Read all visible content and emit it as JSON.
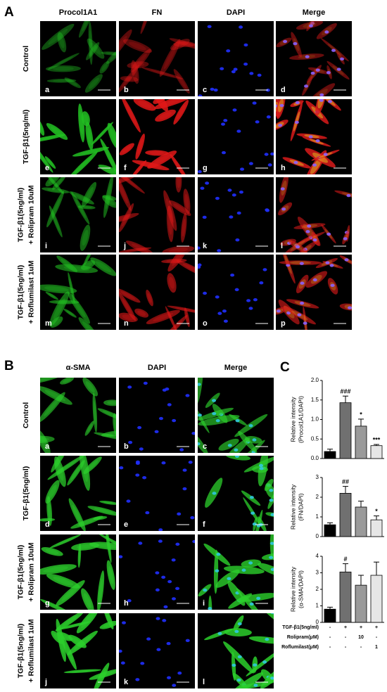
{
  "panel_a": {
    "letter": "A",
    "columns": [
      "Procol1A1",
      "FN",
      "DAPI",
      "Merge"
    ],
    "rows": [
      [
        "Control"
      ],
      [
        "TGF-β1(5ng/ml)"
      ],
      [
        "TGF-β1(5ng/ml)",
        "+ Rolipram 10uM"
      ],
      [
        "TGF-β1(5ng/ml)",
        "+ Roflumilast 1uM"
      ]
    ],
    "image_labels": [
      [
        "a",
        "b",
        "c",
        "d"
      ],
      [
        "e",
        "f",
        "g",
        "h"
      ],
      [
        "i",
        "j",
        "k",
        "l"
      ],
      [
        "m",
        "n",
        "o",
        "p"
      ]
    ]
  },
  "panel_b": {
    "letter": "B",
    "columns": [
      "α-SMA",
      "DAPI",
      "Merge"
    ],
    "rows": [
      [
        "Control"
      ],
      [
        "TGF-β1(5ng/ml)"
      ],
      [
        "TGF-β1(5ng/ml)",
        "+ Rolipram 10uM"
      ],
      [
        "TGF-β1(5ng/ml)",
        "+ Roflumilast 1uM"
      ]
    ],
    "image_labels": [
      [
        "a",
        "b",
        "c"
      ],
      [
        "d",
        "e",
        "f"
      ],
      [
        "g",
        "h",
        "i"
      ],
      [
        "j",
        "k",
        "l"
      ]
    ]
  },
  "panel_c": {
    "letter": "C",
    "treatment_table": [
      {
        "label": "TGF-β1(5ng/ml)",
        "values": [
          "-",
          "+",
          "+",
          "+"
        ]
      },
      {
        "label": "Rolipram(μM)",
        "values": [
          "-",
          "-",
          "10",
          "-"
        ]
      },
      {
        "label": "Roflumilast(μM)",
        "values": [
          "-",
          "-",
          "-",
          "1"
        ]
      }
    ]
  },
  "chart_data": [
    {
      "type": "bar",
      "y_label": [
        "Relative intensity",
        "(Procol1A1/DAPI)"
      ],
      "values": [
        0.18,
        1.43,
        0.83,
        0.33
      ],
      "errors": [
        0.06,
        0.17,
        0.18,
        0.03
      ],
      "annotations": [
        null,
        "###",
        "*",
        "***"
      ],
      "colors": [
        "#000000",
        "#707070",
        "#9a9a9a",
        "#e6e6e6"
      ],
      "ylim": [
        0,
        2
      ],
      "yticks": [
        {
          "value": 0,
          "label": "0.0"
        },
        {
          "value": 0.5,
          "label": "0.5"
        },
        {
          "value": 1,
          "label": "1.0"
        },
        {
          "value": 1.5,
          "label": "1.5"
        },
        {
          "value": 2,
          "label": "2.0"
        }
      ]
    },
    {
      "type": "bar",
      "y_label": [
        "Relative intensity",
        "(FN/DAPI)"
      ],
      "values": [
        0.6,
        2.2,
        1.5,
        0.85
      ],
      "errors": [
        0.1,
        0.35,
        0.3,
        0.2
      ],
      "annotations": [
        null,
        "##",
        null,
        "*"
      ],
      "colors": [
        "#000000",
        "#707070",
        "#9a9a9a",
        "#e6e6e6"
      ],
      "ylim": [
        0,
        3
      ],
      "yticks": [
        0,
        1,
        2,
        3
      ]
    },
    {
      "type": "bar",
      "y_label": [
        "Relative intensity",
        "(α-SMA/DAPI)"
      ],
      "values": [
        0.8,
        3.05,
        2.25,
        2.85
      ],
      "errors": [
        0.12,
        0.5,
        0.6,
        0.8
      ],
      "annotations": [
        null,
        "#",
        null,
        null
      ],
      "colors": [
        "#000000",
        "#707070",
        "#9a9a9a",
        "#e6e6e6"
      ],
      "ylim": [
        0,
        4
      ],
      "yticks": [
        0,
        1,
        2,
        3,
        4
      ]
    }
  ]
}
